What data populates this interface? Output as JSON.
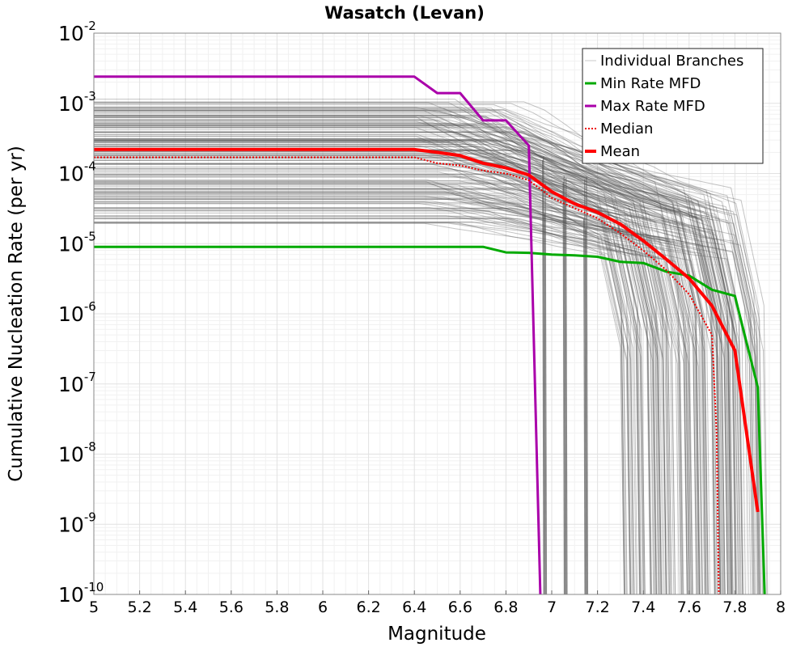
{
  "chart_data": {
    "type": "line",
    "title": "Wasatch (Levan)",
    "xlabel": "Magnitude",
    "ylabel": "Cumulative Nucleation Rate (per yr)",
    "xlim": [
      5,
      8
    ],
    "ylim": [
      1e-10,
      0.01
    ],
    "y_scale": "log",
    "grid": true,
    "legend_position": "top-right",
    "x_ticks": [
      "5",
      "5.2",
      "5.4",
      "5.6",
      "5.8",
      "6",
      "6.2",
      "6.4",
      "6.6",
      "6.8",
      "7",
      "7.2",
      "7.4",
      "7.6",
      "7.8",
      "8"
    ],
    "y_ticks": [
      {
        "base": "10",
        "exp": "-2"
      },
      {
        "base": "10",
        "exp": "-3"
      },
      {
        "base": "10",
        "exp": "-4"
      },
      {
        "base": "10",
        "exp": "-5"
      },
      {
        "base": "10",
        "exp": "-6"
      },
      {
        "base": "10",
        "exp": "-7"
      },
      {
        "base": "10",
        "exp": "-8"
      },
      {
        "base": "10",
        "exp": "-9"
      },
      {
        "base": "10",
        "exp": "-10"
      }
    ],
    "legend": [
      {
        "label": "Individual Branches",
        "color": "#c8c8c8",
        "style": "solid"
      },
      {
        "label": "Min Rate MFD",
        "color": "#00aa00",
        "style": "solid"
      },
      {
        "label": "Max Rate MFD",
        "color": "#aa00aa",
        "style": "solid"
      },
      {
        "label": "Median",
        "color": "#ee0000",
        "style": "dotted"
      },
      {
        "label": "Mean",
        "color": "#ff0000",
        "style": "solid-thick"
      }
    ],
    "series": [
      {
        "name": "Min Rate MFD",
        "color": "#00aa00",
        "x": [
          5.0,
          6.7,
          6.8,
          6.9,
          7.0,
          7.1,
          7.2,
          7.3,
          7.4,
          7.5,
          7.6,
          7.7,
          7.8,
          7.9,
          7.93
        ],
        "y": [
          9e-06,
          9e-06,
          7.5e-06,
          7.4e-06,
          7e-06,
          6.8e-06,
          6.5e-06,
          5.5e-06,
          5.3e-06,
          4e-06,
          3.5e-06,
          2.2e-06,
          1.8e-06,
          9e-08,
          1e-10
        ]
      },
      {
        "name": "Max Rate MFD",
        "color": "#aa00aa",
        "x": [
          5.0,
          6.4,
          6.5,
          6.6,
          6.7,
          6.8,
          6.9,
          6.95
        ],
        "y": [
          0.0024,
          0.0024,
          0.0014,
          0.0014,
          0.00057,
          0.00057,
          0.00025,
          1e-10
        ]
      },
      {
        "name": "Median",
        "color": "#ee0000",
        "x": [
          5.0,
          6.4,
          6.5,
          6.6,
          6.7,
          6.8,
          6.9,
          7.0,
          7.1,
          7.2,
          7.3,
          7.4,
          7.5,
          7.6,
          7.7,
          7.72,
          7.73
        ],
        "y": [
          0.00017,
          0.00017,
          0.00014,
          0.00013,
          0.00011,
          0.0001,
          8e-05,
          4.5e-05,
          3.2e-05,
          2.3e-05,
          1.4e-05,
          8e-06,
          4.2e-06,
          1.9e-06,
          5e-07,
          2e-08,
          1e-10
        ]
      },
      {
        "name": "Mean",
        "color": "#ff0000",
        "x": [
          5.0,
          6.4,
          6.5,
          6.6,
          6.7,
          6.8,
          6.9,
          7.0,
          7.1,
          7.2,
          7.3,
          7.4,
          7.5,
          7.6,
          7.7,
          7.8,
          7.9
        ],
        "y": [
          0.00022,
          0.00022,
          0.0002,
          0.00018,
          0.00014,
          0.00012,
          9.5e-05,
          5.5e-05,
          3.7e-05,
          2.8e-05,
          1.9e-05,
          1.1e-05,
          6e-06,
          3.2e-06,
          1.3e-06,
          3e-07,
          1.5e-09
        ]
      }
    ],
    "individual_branches": {
      "color": "#555555",
      "count": 180,
      "y_plateau_range": [
        1.8e-05,
        0.0012
      ],
      "knee_range": [
        6.4,
        6.9
      ],
      "cutoff_range": [
        7.3,
        7.93
      ]
    }
  }
}
